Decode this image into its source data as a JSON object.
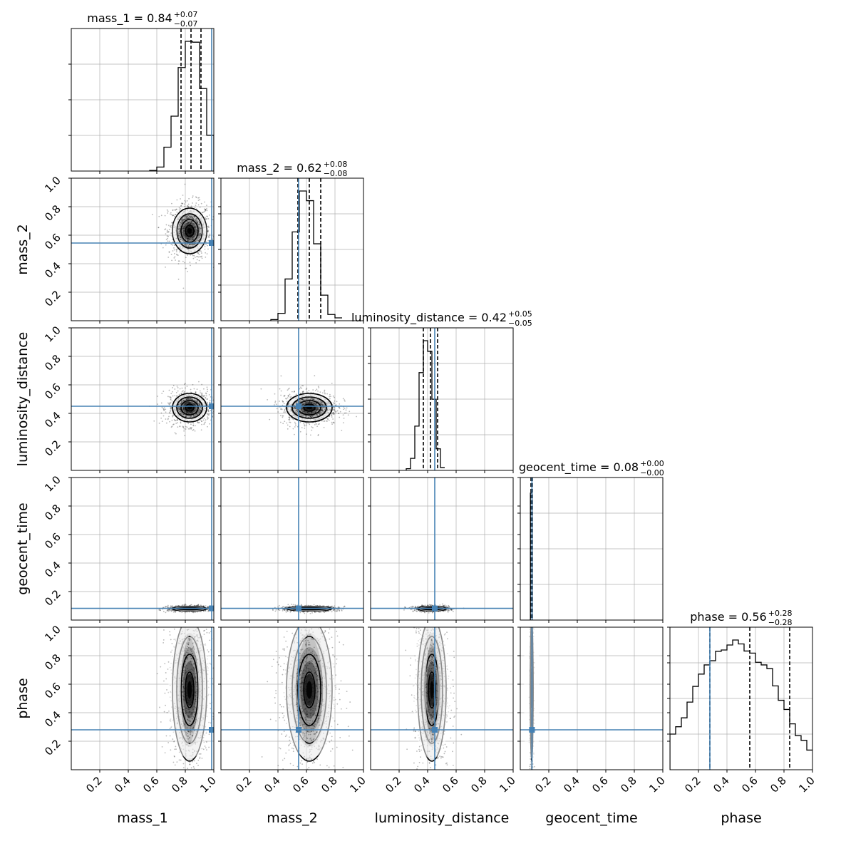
{
  "chart_data": {
    "type": "corner",
    "grid": true,
    "ranges": [
      [
        0,
        1
      ],
      [
        0,
        1
      ],
      [
        0,
        1
      ],
      [
        0,
        1
      ],
      [
        0,
        1
      ]
    ],
    "x_ticks": [
      0.2,
      0.4,
      0.6,
      0.8,
      1.0
    ],
    "y_ticks": [
      0.2,
      0.4,
      0.6,
      0.8,
      1.0
    ],
    "tick_labels": [
      "0.2",
      "0.4",
      "0.6",
      "0.8",
      "1.0"
    ],
    "colors": {
      "truth": "#4682b4",
      "hist": "#000000",
      "grid": "#b0b0b0"
    },
    "parameters": [
      {
        "name": "mass_1",
        "title": "mass_1 = 0.84",
        "median": 0.84,
        "plus": "+0.07",
        "minus": "−0.07",
        "quantiles": [
          0.77,
          0.84,
          0.91
        ],
        "truth": 0.985,
        "hist": {
          "start": 0.55,
          "width": 0.05,
          "counts": [
            2,
            14,
            84,
            193,
            364,
            456,
            453,
            290,
            126,
            0
          ]
        }
      },
      {
        "name": "mass_2",
        "title": "mass_2 = 0.62",
        "median": 0.62,
        "plus": "+0.08",
        "minus": "−0.08",
        "quantiles": [
          0.54,
          0.62,
          0.7
        ],
        "truth": 0.545,
        "hist": {
          "start": 0.35,
          "width": 0.05,
          "counts": [
            4,
            26,
            147,
            313,
            457,
            423,
            271,
            90,
            22,
            10
          ]
        }
      },
      {
        "name": "luminosity_distance",
        "title": "luminosity_distance = 0.42",
        "median": 0.42,
        "plus": "+0.05",
        "minus": "−0.05",
        "quantiles": [
          0.37,
          0.42,
          0.47
        ],
        "truth": 0.45,
        "hist": {
          "start": 0.25,
          "width": 0.03,
          "counts": [
            6,
            43,
            158,
            349,
            463,
            425,
            254,
            77,
            10
          ]
        }
      },
      {
        "name": "geocent_time",
        "title": "geocent_time = 0.08",
        "median": 0.08,
        "plus": "+0.00",
        "minus": "−0.00",
        "quantiles": [
          0.075,
          0.08,
          0.085
        ],
        "truth": 0.082,
        "hist": {
          "start": 0.065,
          "width": 0.006,
          "counts": [
            0,
            460,
            470,
            0
          ]
        }
      },
      {
        "name": "phase",
        "title": "phase = 0.56",
        "median": 0.56,
        "plus": "+0.28",
        "minus": "−0.28",
        "quantiles": [
          0.28,
          0.56,
          0.84
        ],
        "truth": 0.28,
        "hist": {
          "start": 0.0,
          "width": 0.04,
          "counts": [
            136,
            164,
            198,
            258,
            318,
            365,
            400,
            416,
            452,
            457,
            476,
            495,
            480,
            453,
            445,
            410,
            400,
            386,
            320,
            265,
            230,
            175,
            130,
            112,
            75
          ]
        }
      }
    ],
    "blobs": [
      {
        "x": 0,
        "y": 1,
        "cx": 0.83,
        "cy": 0.63,
        "sx": 0.06,
        "sy": 0.08
      },
      {
        "x": 0,
        "y": 2,
        "cx": 0.83,
        "cy": 0.44,
        "sx": 0.06,
        "sy": 0.05
      },
      {
        "x": 1,
        "y": 2,
        "cx": 0.62,
        "cy": 0.44,
        "sx": 0.08,
        "sy": 0.05
      },
      {
        "x": 0,
        "y": 3,
        "cx": 0.83,
        "cy": 0.08,
        "sx": 0.06,
        "sy": 0.008
      },
      {
        "x": 1,
        "y": 3,
        "cx": 0.62,
        "cy": 0.08,
        "sx": 0.08,
        "sy": 0.008
      },
      {
        "x": 2,
        "y": 3,
        "cx": 0.43,
        "cy": 0.08,
        "sx": 0.05,
        "sy": 0.008
      },
      {
        "x": 0,
        "y": 4,
        "cx": 0.83,
        "cy": 0.56,
        "sx": 0.06,
        "sy": 0.25
      },
      {
        "x": 1,
        "y": 4,
        "cx": 0.62,
        "cy": 0.56,
        "sx": 0.08,
        "sy": 0.25
      },
      {
        "x": 2,
        "y": 4,
        "cx": 0.43,
        "cy": 0.56,
        "sx": 0.05,
        "sy": 0.25
      },
      {
        "x": 3,
        "y": 4,
        "cx": 0.08,
        "cy": 0.56,
        "sx": 0.005,
        "sy": 0.25
      }
    ]
  }
}
